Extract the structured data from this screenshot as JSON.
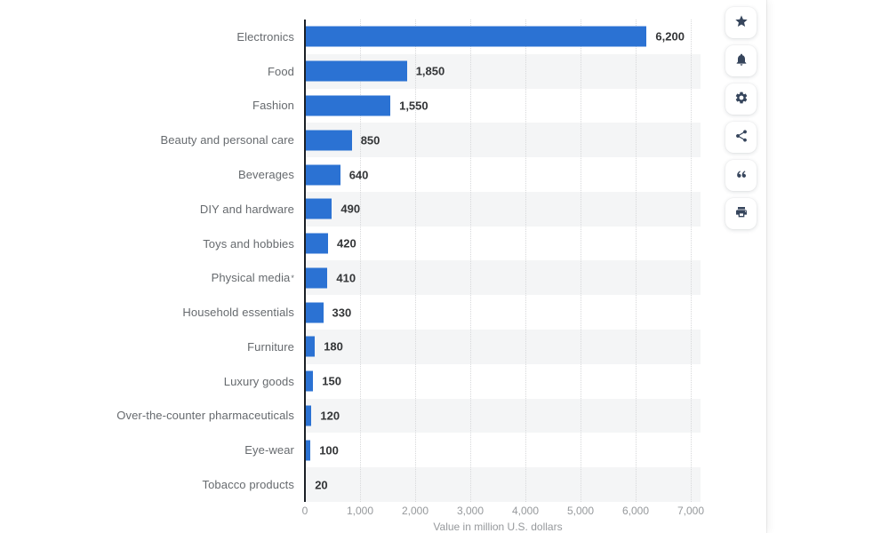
{
  "chart_data": {
    "type": "bar",
    "orientation": "horizontal",
    "categories": [
      "Electronics",
      "Food",
      "Fashion",
      "Beauty and personal care",
      "Beverages",
      "DIY and hardware",
      "Toys and hobbies",
      "Physical media*",
      "Household essentials",
      "Furniture",
      "Luxury goods",
      "Over-the-counter pharmaceuticals",
      "Eye-wear",
      "Tobacco products"
    ],
    "values": [
      6200,
      1850,
      1550,
      850,
      640,
      490,
      420,
      410,
      330,
      180,
      150,
      120,
      100,
      20
    ],
    "value_labels": [
      "6,200",
      "1,850",
      "1,550",
      "850",
      "640",
      "490",
      "420",
      "410",
      "330",
      "180",
      "150",
      "120",
      "100",
      "20"
    ],
    "title": "",
    "xlabel": "Value in million U.S. dollars",
    "ylabel": "",
    "x_ticks": [
      "0",
      "1,000",
      "2,000",
      "3,000",
      "4,000",
      "5,000",
      "6,000",
      "7,000"
    ],
    "xlim": [
      0,
      7000
    ],
    "grid": "vertical-dotted",
    "row_banding": "alternate, bands on 2nd, 4th... rows",
    "legend": "none",
    "colors": {
      "bar": "#2b72d3",
      "band": "#f4f5f6",
      "icon": "#36455c",
      "value_label": "#333537",
      "category_label": "#666a6e",
      "tick_label": "#96999c"
    }
  },
  "toolbar": {
    "buttons": [
      {
        "id": "favorite",
        "icon": "star-icon"
      },
      {
        "id": "alerts",
        "icon": "bell-icon"
      },
      {
        "id": "settings",
        "icon": "gear-icon"
      },
      {
        "id": "share",
        "icon": "share-icon"
      },
      {
        "id": "cite",
        "icon": "quote-icon"
      },
      {
        "id": "print",
        "icon": "printer-icon"
      }
    ]
  }
}
